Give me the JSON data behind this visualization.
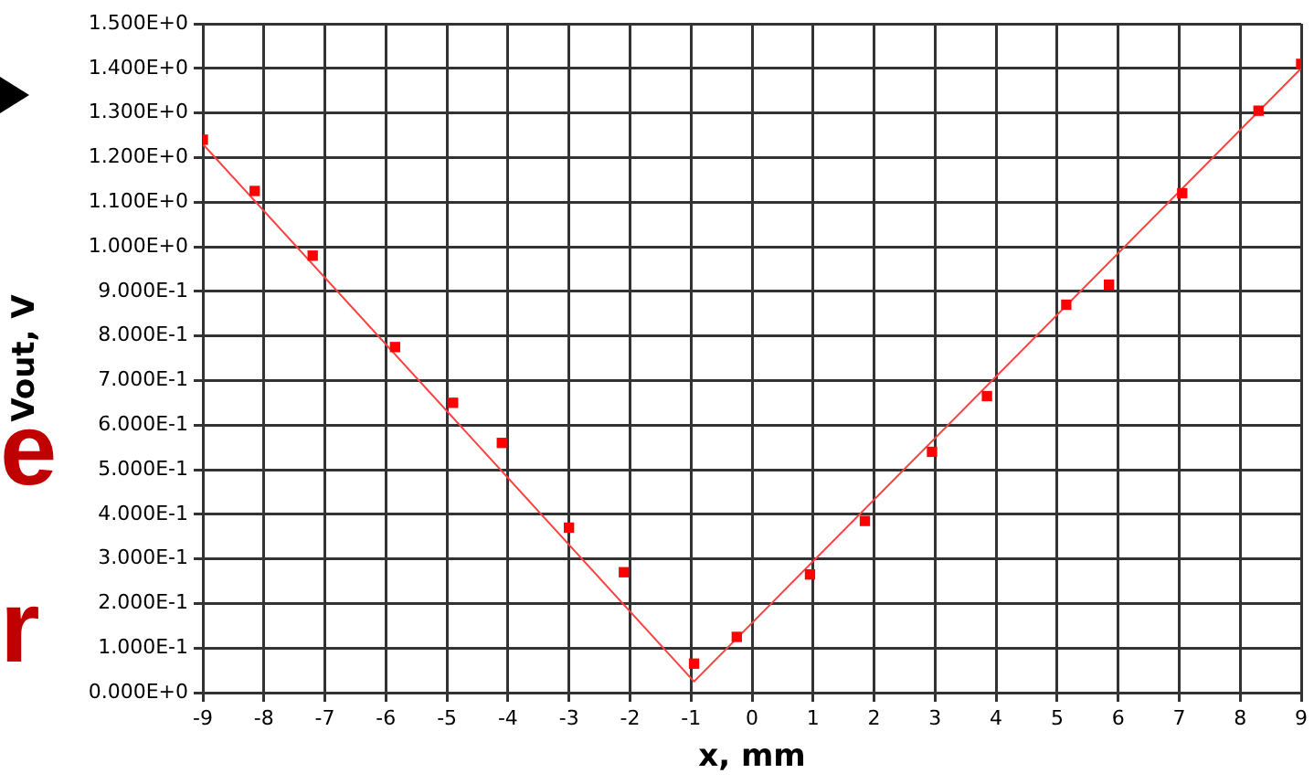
{
  "chart_data": {
    "type": "scatter",
    "xlabel": "x, mm",
    "ylabel": "Vout, V",
    "annotations": [
      "e",
      "r"
    ],
    "xlim": [
      -9,
      9
    ],
    "xticks": [
      -9,
      -8,
      -7,
      -6,
      -5,
      -4,
      -3,
      -2,
      -1,
      0,
      1,
      2,
      3,
      4,
      5,
      6,
      7,
      8,
      9
    ],
    "ylim": [
      0,
      1.5
    ],
    "yticks": [
      {
        "value": 0,
        "label": "0.000E+0"
      },
      {
        "value": 0.1,
        "label": "1.000E-1"
      },
      {
        "value": 0.2,
        "label": "2.000E-1"
      },
      {
        "value": 0.3,
        "label": "3.000E-1"
      },
      {
        "value": 0.4,
        "label": "4.000E-1"
      },
      {
        "value": 0.5,
        "label": "5.000E-1"
      },
      {
        "value": 0.6,
        "label": "6.000E-1"
      },
      {
        "value": 0.7,
        "label": "7.000E-1"
      },
      {
        "value": 0.8,
        "label": "8.000E-1"
      },
      {
        "value": 0.9,
        "label": "9.000E-1"
      },
      {
        "value": 1,
        "label": "1.000E+0"
      },
      {
        "value": 1.1,
        "label": "1.100E+0"
      },
      {
        "value": 1.2,
        "label": "1.200E+0"
      },
      {
        "value": 1.3,
        "label": "1.300E+0"
      },
      {
        "value": 1.4,
        "label": "1.400E+0"
      },
      {
        "value": 1.5,
        "label": "1.500E+0"
      }
    ],
    "grid": true,
    "legend": false,
    "marker": "square",
    "series": [
      {
        "color": "#ff0000",
        "x": [
          -9,
          -8.15,
          -7.2,
          -5.85,
          -4.9,
          -4.1,
          -3,
          -2.1,
          -0.95,
          -0.25,
          0.95,
          1.85,
          2.95,
          3.85,
          5.15,
          5.85,
          7.05,
          8.3,
          9
        ],
        "values": [
          1.24,
          1.125,
          0.98,
          0.775,
          0.65,
          0.56,
          0.37,
          0.27,
          0.065,
          0.125,
          0.265,
          0.385,
          0.54,
          0.665,
          0.87,
          0.915,
          1.12,
          1.305,
          1.41
        ]
      },
      {
        "type": "line",
        "color": "#ff4040",
        "marker": "none",
        "x": [
          -9,
          -0.95,
          9
        ],
        "values": [
          1.23,
          0.025,
          1.4
        ]
      }
    ]
  }
}
